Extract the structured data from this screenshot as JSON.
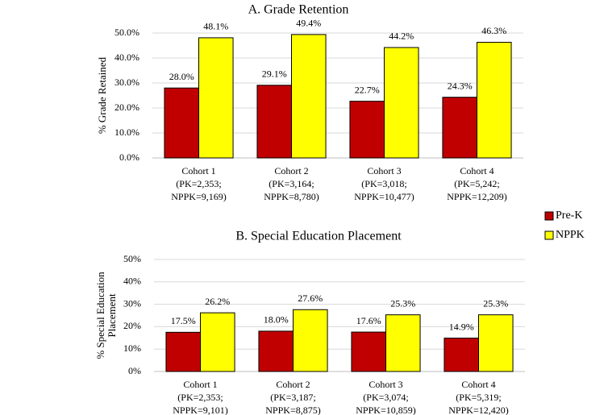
{
  "chart_data": [
    {
      "type": "bar",
      "title": "A. Grade Retention",
      "y_label": [
        "% Grade Retained"
      ],
      "categories": [
        [
          "Cohort 1",
          "(PK=2,353;",
          "NPPK=9,169)"
        ],
        [
          "Cohort 2",
          "(PK=3,164;",
          "NPPK=8,780)"
        ],
        [
          "Cohort 3",
          "(PK=3,018;",
          "NPPK=10,477)"
        ],
        [
          "Cohort 4",
          "(PK=5,242;",
          "NPPK=12,209)"
        ]
      ],
      "series": [
        {
          "name": "Pre-K",
          "color": "#c00000",
          "values": [
            28.0,
            29.1,
            22.7,
            24.3
          ],
          "value_labels": [
            "28.0%",
            "29.1%",
            "22.7%",
            "24.3%"
          ]
        },
        {
          "name": "NPPK",
          "color": "#ffff00",
          "values": [
            48.1,
            49.4,
            44.2,
            46.3
          ],
          "value_labels": [
            "48.1%",
            "49.4%",
            "44.2%",
            "46.3%"
          ]
        }
      ],
      "ylim": [
        0,
        50
      ],
      "yticks": [
        {
          "value": 0,
          "label": "0.0%"
        },
        {
          "value": 10,
          "label": "10.0%"
        },
        {
          "value": 20,
          "label": "20.0%"
        },
        {
          "value": 30,
          "label": "30.0%"
        },
        {
          "value": 40,
          "label": "40.0%"
        },
        {
          "value": 50,
          "label": "50.0%"
        }
      ],
      "grid": true
    },
    {
      "type": "bar",
      "title": "B. Special Education Placement",
      "y_label": [
        "% Special Education",
        "Placement"
      ],
      "categories": [
        [
          "Cohort 1",
          "(PK=2,353;",
          "NPPK=9,101)"
        ],
        [
          "Cohort 2",
          "(PK=3,187;",
          "NPPK=8,875)"
        ],
        [
          "Cohort 3",
          "(PK=3,074;",
          "NPPK=10,859)"
        ],
        [
          "Cohort 4",
          "(PK=5,319;",
          "NPPK=12,420)"
        ]
      ],
      "series": [
        {
          "color": "#c00000",
          "values": [
            17.5,
            18.0,
            17.6,
            14.9
          ],
          "value_labels": [
            "17.5%",
            "18.0%",
            "17.6%",
            "14.9%"
          ]
        },
        {
          "color": "#ffff00",
          "values": [
            26.2,
            27.6,
            25.3,
            25.3
          ],
          "value_labels": [
            "26.2%",
            "27.6%",
            "25.3%",
            "25.3%"
          ]
        }
      ],
      "ylim": [
        0,
        50
      ],
      "yticks": [
        {
          "value": 0,
          "label": "0%"
        },
        {
          "value": 10,
          "label": "10%"
        },
        {
          "value": 20,
          "label": "20%"
        },
        {
          "value": 30,
          "label": "30%"
        },
        {
          "value": 40,
          "label": "40%"
        },
        {
          "value": 50,
          "label": "50%"
        }
      ],
      "grid": true
    }
  ]
}
